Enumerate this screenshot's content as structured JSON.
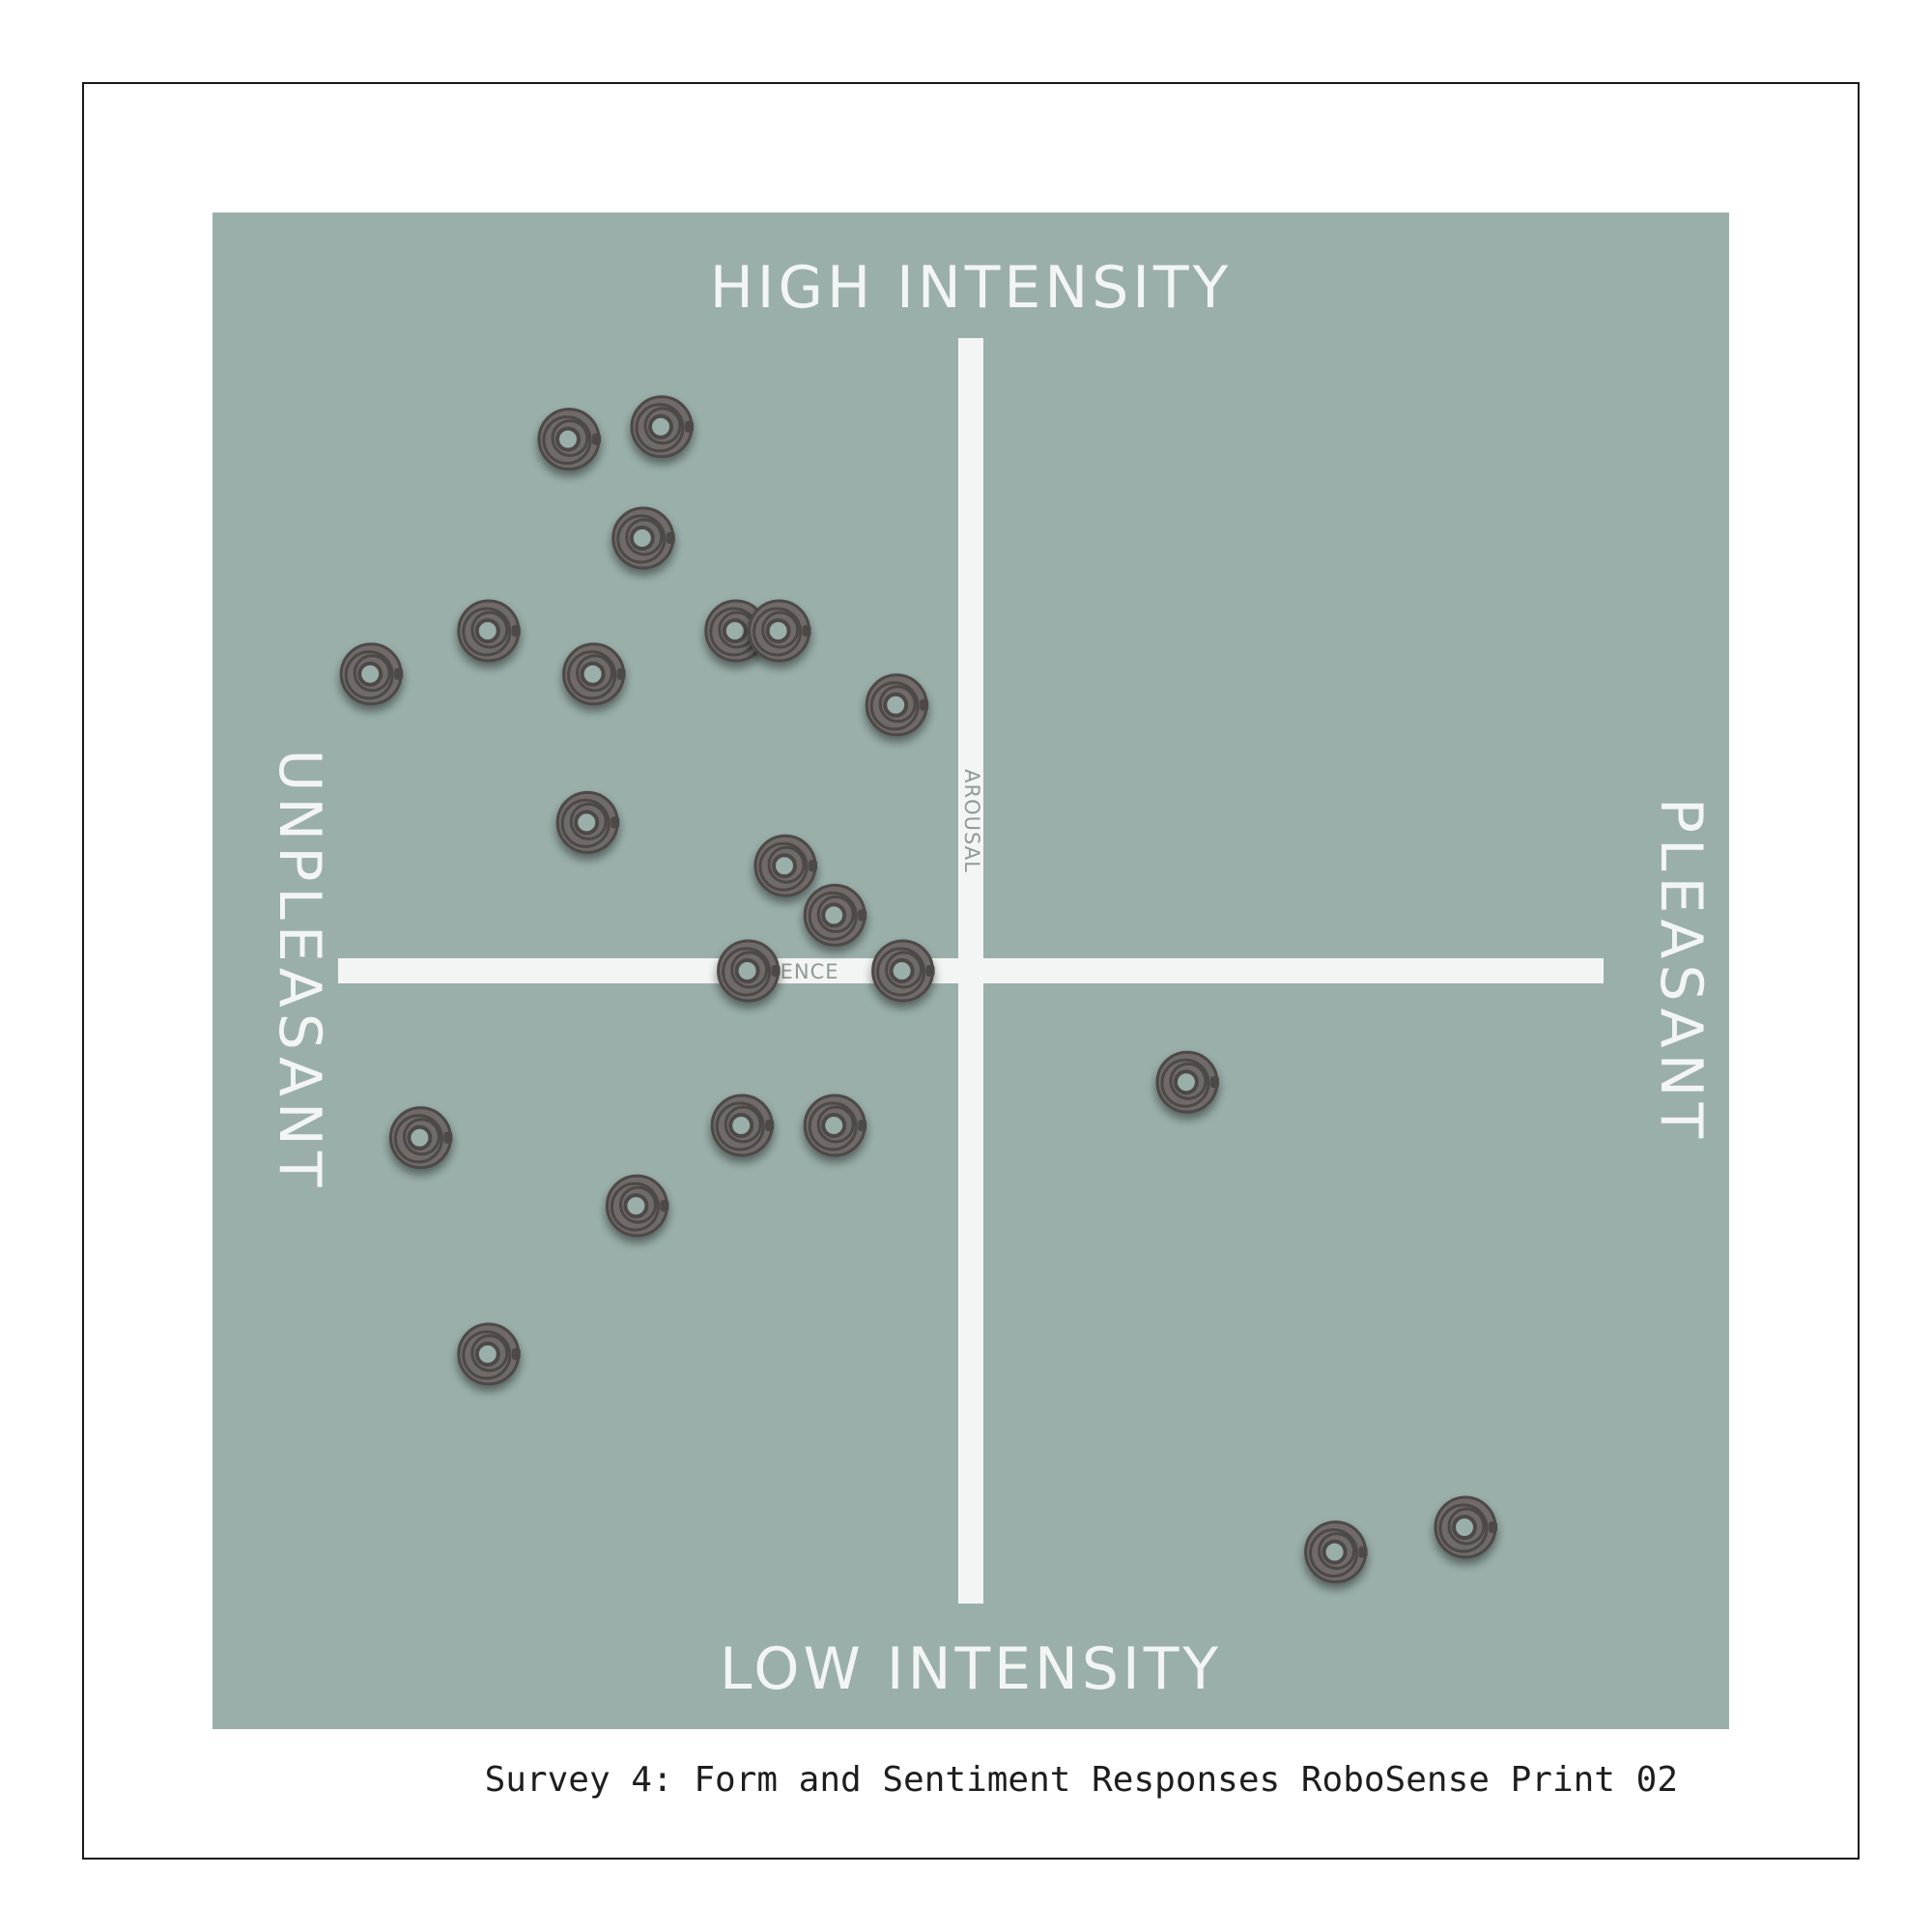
{
  "colors": {
    "panel": "#9aafaa",
    "axis": "#f3f5f4",
    "marker": "#6f6a68",
    "marker_ring": "#4d4846",
    "marker_hole": "#9aafaa"
  },
  "caption": "Survey 4: Form and Sentiment Responses RoboSense Print 02",
  "chart_data": {
    "type": "scatter",
    "labels": {
      "top": "HIGH INTENSITY",
      "bottom": "LOW INTENSITY",
      "left": "UNPLEASANT",
      "right": "PLEASANT",
      "x_axis": "VALENCE",
      "y_axis": "AROUSAL"
    },
    "xlim": [
      -1,
      1
    ],
    "ylim": [
      -1,
      1
    ],
    "grid": false,
    "marker_icon": "robot-head-icon",
    "points": [
      {
        "x": -0.65,
        "y": 0.86
      },
      {
        "x": -0.5,
        "y": 0.88
      },
      {
        "x": -0.53,
        "y": 0.7
      },
      {
        "x": -0.97,
        "y": 0.48
      },
      {
        "x": -0.78,
        "y": 0.55
      },
      {
        "x": -0.61,
        "y": 0.48
      },
      {
        "x": -0.38,
        "y": 0.55
      },
      {
        "x": -0.31,
        "y": 0.55
      },
      {
        "x": -0.12,
        "y": 0.43
      },
      {
        "x": -0.62,
        "y": 0.24
      },
      {
        "x": -0.3,
        "y": 0.17
      },
      {
        "x": -0.22,
        "y": 0.09
      },
      {
        "x": -0.36,
        "y": 0.0
      },
      {
        "x": -0.11,
        "y": 0.0
      },
      {
        "x": -0.89,
        "y": -0.27
      },
      {
        "x": -0.37,
        "y": -0.25
      },
      {
        "x": -0.22,
        "y": -0.25
      },
      {
        "x": -0.54,
        "y": -0.38
      },
      {
        "x": -0.78,
        "y": -0.62
      },
      {
        "x": 0.35,
        "y": -0.18
      },
      {
        "x": 0.59,
        "y": -0.94
      },
      {
        "x": 0.8,
        "y": -0.9
      }
    ]
  }
}
